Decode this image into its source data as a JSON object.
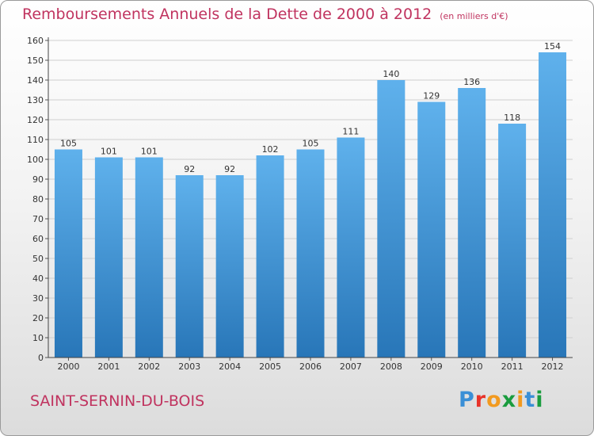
{
  "header": {
    "title": "Remboursements Annuels de la Dette de 2000 à 2012",
    "unit": "(en milliers d'€)"
  },
  "footer": {
    "city": "SAINT-SERNIN-DU-BOIS",
    "logo": {
      "letters": [
        "P",
        "r",
        "o",
        "x",
        "i",
        "t",
        "i"
      ],
      "colors": [
        "#3a8fd6",
        "#e8332a",
        "#f29a1f",
        "#1a9c3e",
        "#f29a1f",
        "#3a8fd6",
        "#1a9c3e"
      ]
    }
  },
  "colors": {
    "bar_top": "#5fb1ec",
    "bar_bottom": "#2876b8",
    "grid": "#cfcfcf",
    "title": "#c0335f"
  },
  "chart_data": {
    "type": "bar",
    "title": "Remboursements Annuels de la Dette de 2000 à 2012",
    "xlabel": "",
    "ylabel": "",
    "ylim": [
      0,
      160
    ],
    "ystep": 10,
    "grid": true,
    "categories": [
      "2000",
      "2001",
      "2002",
      "2003",
      "2004",
      "2005",
      "2006",
      "2007",
      "2008",
      "2009",
      "2010",
      "2011",
      "2012"
    ],
    "values": [
      105,
      101,
      101,
      92,
      92,
      102,
      105,
      111,
      140,
      129,
      136,
      118,
      154
    ]
  }
}
